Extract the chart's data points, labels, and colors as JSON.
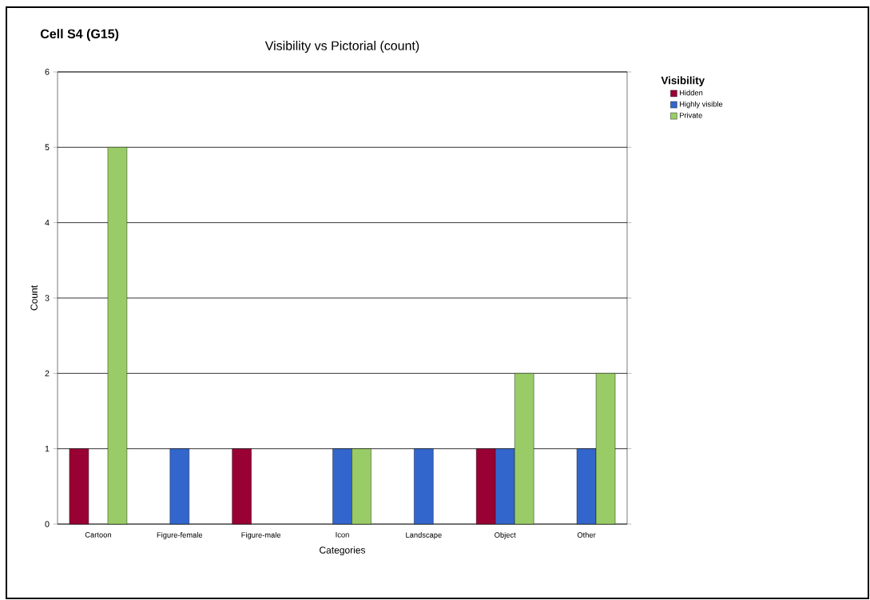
{
  "chart_data": {
    "type": "bar",
    "title": "Visibility vs Pictorial (count)",
    "xlabel": "Categories",
    "ylabel": "Count",
    "legend_title": "Visibility",
    "annotations": [
      "Cell  S4 (G15)"
    ],
    "categories": [
      "Cartoon",
      "Figure-female",
      "Figure-male",
      "Icon",
      "Landscape",
      "Object",
      "Other"
    ],
    "series": [
      {
        "name": "Hidden",
        "color": "#990033",
        "values": [
          1,
          null,
          1,
          null,
          null,
          1,
          null
        ]
      },
      {
        "name": "Highly visible",
        "color": "#3366cc",
        "values": [
          null,
          1,
          null,
          1,
          1,
          1,
          1
        ]
      },
      {
        "name": "Private",
        "color": "#99cc66",
        "values": [
          5,
          null,
          null,
          1,
          null,
          2,
          2
        ]
      }
    ],
    "ylim": [
      0,
      6
    ],
    "yticks": [
      0,
      1,
      2,
      3,
      4,
      5,
      6
    ],
    "grid": "y",
    "legend": "top right"
  }
}
